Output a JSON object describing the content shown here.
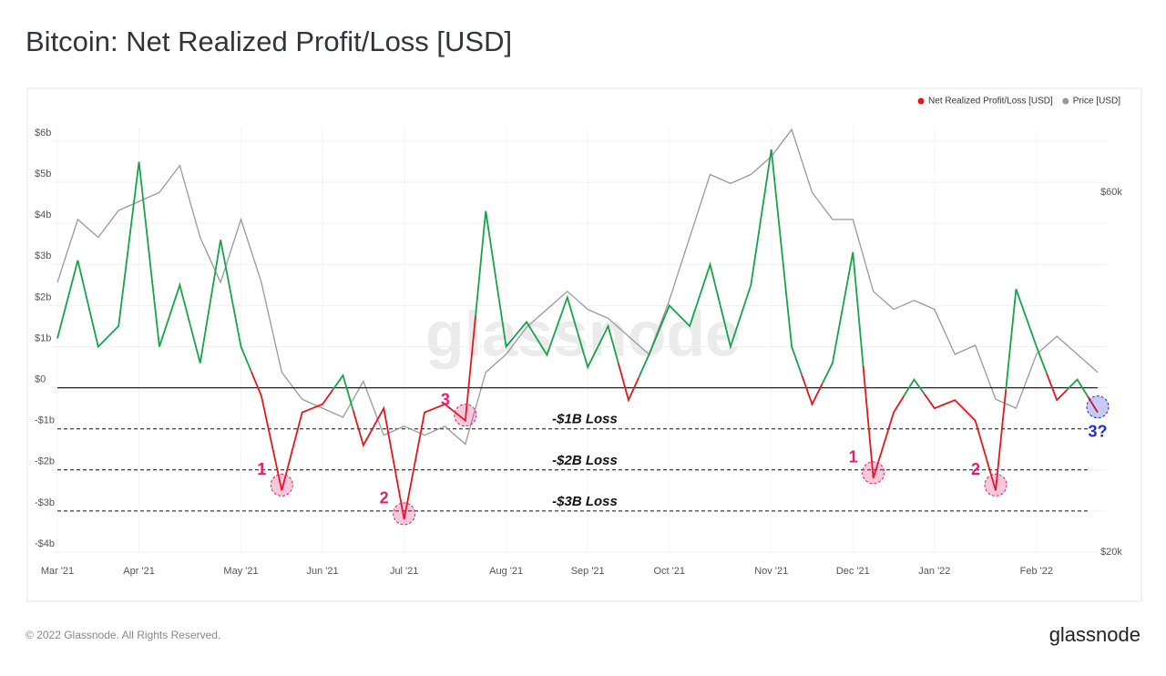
{
  "chart_data": {
    "type": "line",
    "title": "Bitcoin: Net Realized Profit/Loss [USD]",
    "categories": [
      "Mar '21",
      null,
      null,
      null,
      "Apr '21",
      null,
      null,
      null,
      null,
      "May '21",
      null,
      null,
      null,
      "Jun '21",
      null,
      null,
      null,
      "Jul '21",
      null,
      null,
      null,
      null,
      "Aug '21",
      null,
      null,
      null,
      "Sep '21",
      null,
      null,
      null,
      "Oct '21",
      null,
      null,
      null,
      null,
      "Nov '21",
      null,
      null,
      null,
      "Dec '21",
      null,
      null,
      null,
      "Jan '22",
      null,
      null,
      null,
      null,
      "Feb '22",
      null,
      null,
      null
    ],
    "series": [
      {
        "name": "Net Realized Profit/Loss [USD]",
        "color": "#e3161c",
        "positive_color": "#16a34a",
        "values": [
          1.2,
          3.1,
          1.0,
          1.5,
          5.5,
          1.0,
          2.5,
          0.6,
          3.6,
          1.0,
          -0.2,
          -2.5,
          -0.6,
          -0.4,
          0.3,
          -1.4,
          -0.5,
          -3.2,
          -0.6,
          -0.4,
          -0.8,
          4.3,
          1.0,
          1.6,
          0.8,
          2.2,
          0.5,
          1.5,
          -0.3,
          0.8,
          2.0,
          1.5,
          3.0,
          1.0,
          2.5,
          5.8,
          1.0,
          -0.4,
          0.6,
          3.3,
          -2.2,
          -0.6,
          0.2,
          -0.5,
          -0.3,
          -0.8,
          -2.5,
          2.4,
          1.0,
          -0.3,
          0.2,
          -0.6
        ]
      },
      {
        "name": "Price [USD]",
        "color": "#999999",
        "axis": "y2",
        "values": [
          50000,
          57000,
          55000,
          58000,
          59000,
          60000,
          63000,
          55000,
          50000,
          57000,
          50000,
          40000,
          37000,
          36000,
          35000,
          39000,
          33000,
          34000,
          33000,
          34000,
          32000,
          40000,
          42000,
          45000,
          47000,
          49000,
          47000,
          46000,
          44000,
          42000,
          48000,
          55000,
          62000,
          61000,
          62000,
          64000,
          67000,
          60000,
          57000,
          57000,
          49000,
          47000,
          48000,
          47000,
          42000,
          43000,
          37000,
          36000,
          42000,
          44000,
          42000,
          40000
        ]
      }
    ],
    "ylim": [
      -4,
      6.0
    ],
    "yticks": [
      {
        "value": -4,
        "label": "-$4b"
      },
      {
        "value": -3,
        "label": "-$3b"
      },
      {
        "value": -2,
        "label": "-$2b"
      },
      {
        "value": -1,
        "label": "-$1b"
      },
      {
        "value": 0,
        "label": "$0"
      },
      {
        "value": 1,
        "label": "$1b"
      },
      {
        "value": 2,
        "label": "$2b"
      },
      {
        "value": 3,
        "label": "$3b"
      },
      {
        "value": 4,
        "label": "$4b"
      },
      {
        "value": 5,
        "label": "$5b"
      },
      {
        "value": 6,
        "label": "$6b"
      }
    ],
    "y2lim": [
      20000,
      65700
    ],
    "y2ticks": [
      {
        "value": 20000,
        "label": "$20k"
      },
      {
        "value": 60000,
        "label": "$60k"
      }
    ],
    "grid": true,
    "legend": "top-right",
    "reference_lines": [
      {
        "value": -1,
        "label": "-$1B Loss"
      },
      {
        "value": -2,
        "label": "-$2B Loss"
      },
      {
        "value": -3,
        "label": "-$3B Loss"
      }
    ],
    "callouts": [
      {
        "label": "1",
        "value": -2.5,
        "color": "#e0206e"
      },
      {
        "label": "2",
        "value": -3.2,
        "color": "#e0206e"
      },
      {
        "label": "3",
        "value": -0.8,
        "color": "#e0206e"
      },
      {
        "label": "1",
        "value": -2.2,
        "color": "#e0206e"
      },
      {
        "label": "2",
        "value": -2.5,
        "color": "#e0206e"
      },
      {
        "label": "3?",
        "value": -0.6,
        "color": "#1f2fd0"
      }
    ],
    "watermark": "glassnode",
    "footer": "© 2022 Glassnode. All Rights Reserved.",
    "logo": "glassnode"
  }
}
